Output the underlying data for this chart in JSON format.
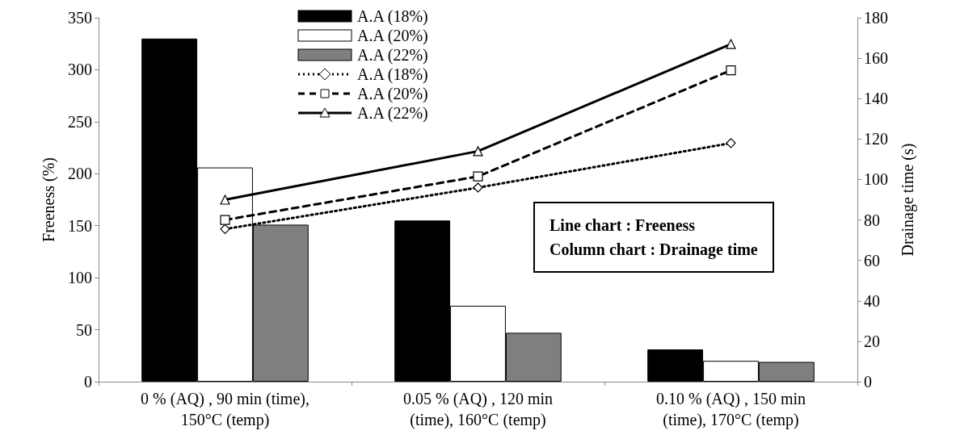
{
  "chart_data": {
    "type": "bar",
    "categories": [
      "0 % (AQ) , 90 min (time),\n150°C (temp)",
      "0.05 % (AQ) , 120 min\n(time), 160°C (temp)",
      "0.10 % (AQ) , 150 min\n(time), 170°C (temp)"
    ],
    "ylabel": "Freeness (%)",
    "y2label": "Drainage time (s)",
    "ylim": [
      0,
      350
    ],
    "yticks": [
      0,
      50,
      100,
      150,
      200,
      250,
      300,
      350
    ],
    "y2lim": [
      0,
      180
    ],
    "y2ticks": [
      0,
      20,
      40,
      60,
      80,
      100,
      120,
      140,
      160,
      180
    ],
    "series": [
      {
        "name": "A.A (18%)",
        "color": "#000000",
        "values": [
          330,
          155,
          31
        ]
      },
      {
        "name": "A.A (20%)",
        "color": "#ffffff",
        "values": [
          206,
          73,
          20
        ]
      },
      {
        "name": "A.A (22%)",
        "color": "#7f7f7f",
        "values": [
          151,
          47,
          19
        ]
      },
      {
        "name": "A.A (18%)",
        "type": "line",
        "axis": "y2",
        "color": "#000000",
        "marker": "diamond",
        "line_style": "dotted",
        "values": [
          75.5,
          96,
          118
        ]
      },
      {
        "name": "A.A (20%)",
        "type": "line",
        "axis": "y2",
        "color": "#000000",
        "marker": "square",
        "line_style": "dashed",
        "values": [
          80,
          101.5,
          154
        ]
      },
      {
        "name": "A.A (22%)",
        "type": "line",
        "axis": "y2",
        "color": "#000000",
        "marker": "triangle",
        "line_style": "solid",
        "values": [
          90,
          114,
          167
        ]
      }
    ],
    "annotations": [
      "Line chart : Freeness",
      "Column chart : Drainage time"
    ],
    "legend": "top",
    "grid": false
  }
}
